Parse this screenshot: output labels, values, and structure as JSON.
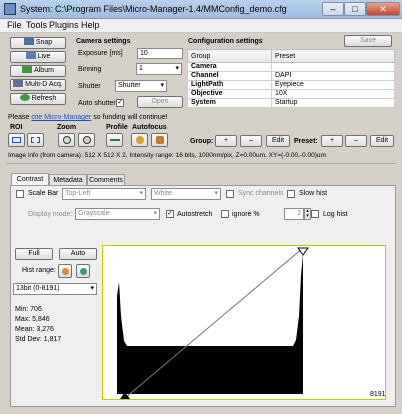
{
  "window": {
    "title": "System: C:\\Program Files\\Micro-Manager-1.4/MMConfig_demo.cfg",
    "min": "–",
    "max": "□",
    "close": "✕"
  },
  "menu": [
    "File",
    "Tools",
    "Plugins",
    "Help"
  ],
  "left_buttons": {
    "snap": "Snap",
    "live": "Live",
    "album": "Album",
    "mda": "Multi-D Acq.",
    "refresh": "Refresh"
  },
  "camera": {
    "heading": "Camera settings",
    "exposure_label": "Exposure [ms]",
    "exposure_value": "10",
    "binning_label": "Binning",
    "binning_value": "1",
    "shutter_label": "Shutter",
    "shutter_value": "Shutter",
    "auto_shutter_label": "Auto shutter",
    "auto_shutter_checked": true,
    "open_label": "Open"
  },
  "config": {
    "heading": "Configuration settings",
    "save_label": "Save",
    "col_group": "Group",
    "col_preset": "Preset",
    "rows": [
      {
        "group": "Camera",
        "preset": ""
      },
      {
        "group": "Channel",
        "preset": "DAPI"
      },
      {
        "group": "LightPath",
        "preset": "Eyepiece"
      },
      {
        "group": "Objective",
        "preset": "10X"
      },
      {
        "group": "System",
        "preset": "Startup"
      }
    ],
    "group_label": "Group:",
    "preset_label": "Preset:",
    "plus": "+",
    "minus": "–",
    "edit": "Edit"
  },
  "notice": {
    "pre": "Please ",
    "link": "cite Micro-Manager",
    "post": " so funding will continue!"
  },
  "tools": {
    "roi": "ROI",
    "zoom": "Zoom",
    "profile": "Profile",
    "autofocus": "Autofocus"
  },
  "image_info": "Image info (from camera): 512 X 512 X 2, Intensity range: 16 bits, 1000nm/pix, Z=0.00um, XY=(-0.00,-0.00)um",
  "tabs": [
    "Contrast",
    "Metadata",
    "Comments"
  ],
  "contrast": {
    "scale_bar_label": "Scale Bar",
    "scale_bar_pos": "Top-Left",
    "scale_bar_color": "White",
    "sync_label": "Sync channels",
    "slow_hist_label": "Slow hist",
    "display_mode_label": "Display mode:",
    "display_mode_value": "Grayscale",
    "autostretch_label": "Autostretch",
    "autostretch_checked": true,
    "ignore_label": "ignore %",
    "ignore_value": "2",
    "log_hist_label": "Log hist",
    "full_label": "Full",
    "auto_label": "Auto",
    "hist_range_label": "Hist range:",
    "bit_range": "13bit (0-8191)",
    "stats": {
      "min": "Min: 706",
      "max": "Max: 5,846",
      "mean": "Mean: 3,276",
      "std": "Std Dev: 1,817"
    },
    "hist_max_label": "8191"
  },
  "colors": {
    "accent_blue": "#1a4fd0",
    "hist_border": "#c8c800"
  }
}
